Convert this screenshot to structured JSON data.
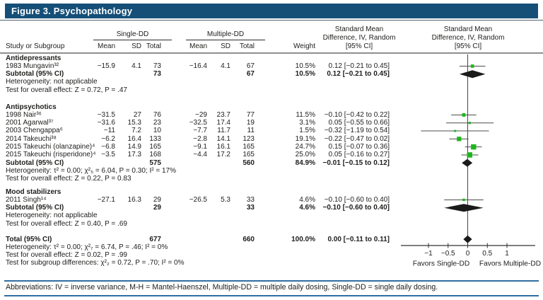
{
  "title": "Figure 3. Psychopathology",
  "colors": {
    "title_bar": "#154F78",
    "footer_rule": "#2F6EA0",
    "marker_green": "#1CB61C",
    "diamond": "#1a1a1a",
    "rule_gray": "#8f8f8f",
    "text": "#1d1d1b"
  },
  "header": {
    "study_col": "Study or Subgroup",
    "group1": "Single-DD",
    "group2": "Multiple-DD",
    "subcols": [
      "Mean",
      "SD",
      "Total",
      "Mean",
      "SD",
      "Total"
    ],
    "weight": "Weight",
    "smd_lines": [
      "Standard Mean",
      "Difference, IV, Random",
      "[95% CI]"
    ]
  },
  "footer": {
    "abbreviations": "Abbreviations: IV = inverse variance, M-H = Mantel-Haenszel, Multiple-DD = multiple daily dosing, Single-DD = single daily dosing."
  },
  "chart_data": {
    "type": "forest",
    "effect_measure": "Standard Mean Difference, IV, Random [95% CI]",
    "axis": {
      "ticks": [
        -1,
        -0.5,
        0,
        0.5,
        1
      ],
      "tick_labels": [
        "−1",
        "−0.5",
        "0",
        "0.5",
        "1"
      ],
      "xlim": [
        -1.7,
        1.7
      ],
      "favors_left": "Favors Single-DD",
      "favors_right": "Favors Multiple-DD"
    },
    "rows": [
      {
        "type": "section",
        "label": "Antidepressants"
      },
      {
        "type": "study",
        "label": "1983 Mungavin³²",
        "mean1": "−15.9",
        "sd1": "4.1",
        "total1": "73",
        "mean2": "−16.4",
        "sd2": "4.1",
        "total2": "67",
        "weight": "10.5%",
        "ci_text": "0.12 [−0.21 to 0.45]",
        "est": 0.12,
        "lo": -0.21,
        "hi": 0.45,
        "w": 10.5
      },
      {
        "type": "subtotal",
        "label": "Subtotal (95% CI)",
        "total1": "73",
        "total2": "67",
        "weight": "10.5%",
        "ci_text": "0.12 [−0.21 to 0.45]",
        "est": 0.12,
        "lo": -0.21,
        "hi": 0.45
      },
      {
        "type": "note",
        "label": "Heterogeneity: not applicable"
      },
      {
        "type": "note",
        "label": "Test for overall effect: Z = 0.72, P = .47"
      },
      {
        "type": "gap",
        "h": 12.5
      },
      {
        "type": "section",
        "label": "Antipsychotics"
      },
      {
        "type": "study",
        "label": "1998 Nair³⁶",
        "mean1": "−31.5",
        "sd1": "27",
        "total1": "76",
        "mean2": "−29",
        "sd2": "23.7",
        "total2": "77",
        "weight": "11.5%",
        "ci_text": "−0.10 [−0.42 to 0.22]",
        "est": -0.1,
        "lo": -0.42,
        "hi": 0.22,
        "w": 11.5
      },
      {
        "type": "study",
        "label": "2001 Agarwal³⁷",
        "mean1": "−31.6",
        "sd1": "15.3",
        "total1": "23",
        "mean2": "−32.5",
        "sd2": "17.4",
        "total2": "19",
        "weight": "3.1%",
        "ci_text": "0.05 [−0.55 to 0.66]",
        "est": 0.05,
        "lo": -0.55,
        "hi": 0.66,
        "w": 3.1
      },
      {
        "type": "study",
        "label": "2003 Chengappa⁶",
        "mean1": "−11",
        "sd1": "7.2",
        "total1": "10",
        "mean2": "−7.7",
        "sd2": "11.7",
        "total2": "11",
        "weight": "1.5%",
        "ci_text": "−0.32 [−1.19 to 0.54]",
        "est": -0.32,
        "lo": -1.19,
        "hi": 0.54,
        "w": 1.5
      },
      {
        "type": "study",
        "label": "2014 Takeuchi³⁸",
        "mean1": "−6.2",
        "sd1": "16.4",
        "total1": "133",
        "mean2": "−2.8",
        "sd2": "14.1",
        "total2": "123",
        "weight": "19.1%",
        "ci_text": "−0.22 [−0.47 to 0.02]",
        "est": -0.22,
        "lo": -0.47,
        "hi": 0.02,
        "w": 19.1
      },
      {
        "type": "study",
        "label": "2015 Takeuchi (olanzapine)⁴",
        "mean1": "−6.8",
        "sd1": "14.9",
        "total1": "165",
        "mean2": "−9.1",
        "sd2": "16.1",
        "total2": "165",
        "weight": "24.7%",
        "ci_text": "0.15 [−0.07 to 0.36]",
        "est": 0.15,
        "lo": -0.07,
        "hi": 0.36,
        "w": 24.7
      },
      {
        "type": "study",
        "label": "2015 Takeuchi (risperidone)⁴",
        "mean1": "−3.5",
        "sd1": "17.3",
        "total1": "168",
        "mean2": "−4.4",
        "sd2": "17.2",
        "total2": "165",
        "weight": "25.0%",
        "ci_text": "0.05 [−0.16 to 0.27]",
        "est": 0.05,
        "lo": -0.16,
        "hi": 0.27,
        "w": 25.0
      },
      {
        "type": "subtotal",
        "label": "Subtotal (95% CI)",
        "total1": "575",
        "total2": "560",
        "weight": "84.9%",
        "ci_text": "−0.01 [−0.15 to 0.12]",
        "est": -0.01,
        "lo": -0.15,
        "hi": 0.12
      },
      {
        "type": "note",
        "label": "Heterogeneity: τ² = 0.00; χ²₅ = 6.04, P = 0.30; I² = 17%"
      },
      {
        "type": "note",
        "label": "Test for overall effect: Z = 0.22, P = 0.83"
      },
      {
        "type": "gap",
        "h": 7
      },
      {
        "type": "section",
        "label": "Mood stabilizers"
      },
      {
        "type": "study",
        "label": "2011 Singh¹⁴",
        "mean1": "−27.1",
        "sd1": "16.3",
        "total1": "29",
        "mean2": "−26.5",
        "sd2": "5.3",
        "total2": "33",
        "weight": "4.6%",
        "ci_text": "−0.10 [−0.60 to 0.40]",
        "est": -0.1,
        "lo": -0.6,
        "hi": 0.4,
        "w": 4.6
      },
      {
        "type": "subtotal",
        "label": "Subtotal (95% CI)",
        "total1": "29",
        "total2": "33",
        "weight": "4.6%",
        "ci_text": "−0.10 [−0.60 to 0.40]",
        "est": -0.1,
        "lo": -0.6,
        "hi": 0.4
      },
      {
        "type": "note",
        "label": "Heterogeneity: not applicable"
      },
      {
        "type": "note",
        "label": "Test for overall effect: Z = 0.40, P = .69"
      },
      {
        "type": "gap",
        "h": 10.5
      },
      {
        "type": "total",
        "label": "Total (95% CI)",
        "total1": "677",
        "total2": "660",
        "weight": "100.0%",
        "ci_text": "0.00 [−0.11 to 0.11]",
        "est": 0.0,
        "lo": -0.11,
        "hi": 0.11
      },
      {
        "type": "note",
        "label": "Heterogeneity: τ² = 0.00; χ²₇ = 6.74, P = .46; I² = 0%"
      },
      {
        "type": "note",
        "label": "Test for overall effect: Z = 0.02, P = .99"
      },
      {
        "type": "note",
        "label": "Test for subgroup differences: χ²₂ = 0.72, P = .70; I² = 0%"
      }
    ]
  }
}
